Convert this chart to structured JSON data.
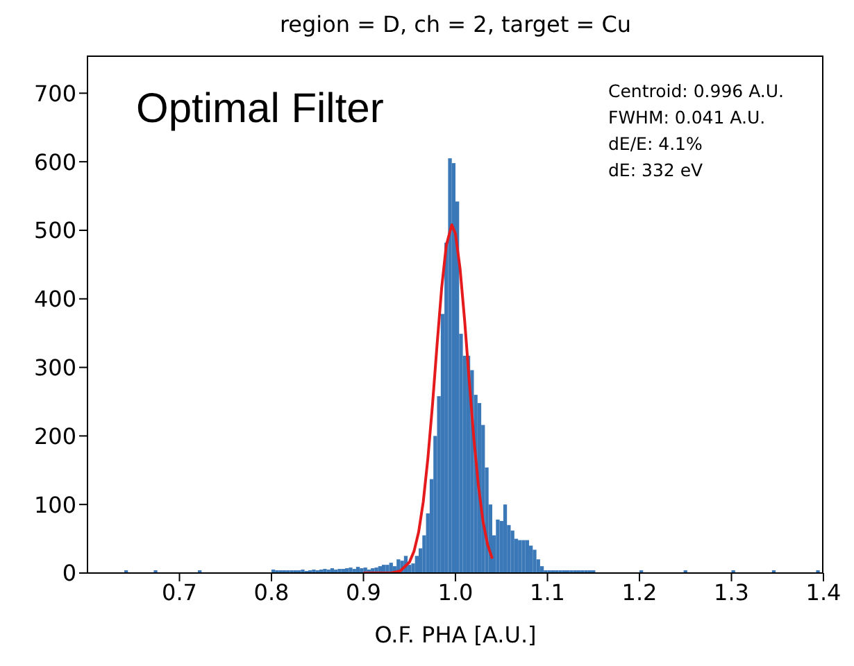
{
  "chart_data": {
    "type": "histogram",
    "title": "region = D, ch = 2, target = Cu",
    "xlabel": "O.F. PHA [A.U.]",
    "annotations": [
      "Optimal Filter",
      "Centroid: 0.996 A.U.",
      "FWHM: 0.041 A.U.",
      "dE/E: 4.1%",
      "dE: 332 eV"
    ],
    "xlim": [
      0.6,
      1.4
    ],
    "xticks": [
      0.7,
      0.8,
      0.9,
      {
        "value": 1,
        "label": "1.0"
      },
      1.1,
      1.2,
      1.3,
      1.4
    ],
    "ylim": [
      0,
      755
    ],
    "yticks": [
      0,
      100,
      200,
      300,
      400,
      500,
      600,
      700
    ],
    "series": [
      {
        "color": "#3a78b8",
        "bins": [
          0.64,
          0.644,
          0.672,
          0.676,
          0.72,
          0.724,
          0.8,
          0.804,
          0.808,
          0.812,
          0.816,
          0.82,
          0.824,
          0.828,
          0.832,
          0.836,
          0.84,
          0.844,
          0.848,
          0.852,
          0.856,
          0.86,
          0.864,
          0.868,
          0.872,
          0.876,
          0.88,
          0.884,
          0.888,
          0.892,
          0.896,
          0.9,
          0.904,
          0.908,
          0.912,
          0.916,
          0.92,
          0.924,
          0.928,
          0.932,
          0.936,
          0.94,
          0.944,
          0.948,
          0.952,
          0.956,
          0.96,
          0.964,
          0.968,
          0.972,
          0.976,
          0.98,
          0.984,
          0.988,
          0.992,
          0.996,
          1.0,
          1.004,
          1.008,
          1.012,
          1.016,
          1.02,
          1.024,
          1.028,
          1.032,
          1.036,
          1.04,
          1.044,
          1.048,
          1.052,
          1.056,
          1.06,
          1.064,
          1.068,
          1.072,
          1.076,
          1.08,
          1.084,
          1.088,
          1.092,
          1.096,
          1.1,
          1.104,
          1.108,
          1.112,
          1.116,
          1.12,
          1.124,
          1.128,
          1.132,
          1.136,
          1.14,
          1.144,
          1.148,
          1.152,
          1.2,
          1.204,
          1.248,
          1.252,
          1.3,
          1.304,
          1.344,
          1.348,
          1.392,
          1.396
        ],
        "values": [
          4,
          0,
          4,
          0,
          4,
          0,
          5,
          4,
          4,
          4,
          4,
          4,
          4,
          4,
          5,
          3,
          4,
          5,
          4,
          5,
          6,
          5,
          7,
          5,
          6,
          6,
          7,
          8,
          6,
          9,
          7,
          8,
          5,
          7,
          8,
          10,
          12,
          12,
          15,
          10,
          20,
          18,
          25,
          12,
          14,
          25,
          36,
          55,
          87,
          137,
          200,
          258,
          378,
          482,
          605,
          598,
          542,
          349,
          317,
          317,
          296,
          260,
          248,
          216,
          154,
          100,
          55,
          78,
          76,
          100,
          70,
          62,
          50,
          48,
          48,
          48,
          40,
          34,
          20,
          10,
          4,
          4,
          4,
          4,
          4,
          4,
          4,
          4,
          4,
          4,
          4,
          4,
          4,
          4,
          0,
          4,
          0,
          4,
          0,
          4,
          0,
          4,
          0,
          4
        ]
      },
      {
        "type": "line",
        "color": "#e41a1c",
        "x": [
          0.9,
          0.92,
          0.93,
          0.94,
          0.95,
          0.955,
          0.96,
          0.965,
          0.97,
          0.975,
          0.98,
          0.985,
          0.99,
          0.996,
          1.0,
          1.005,
          1.01,
          1.015,
          1.02,
          1.025,
          1.03,
          1.035,
          1.04
        ],
        "values": [
          0,
          0,
          0,
          3,
          16,
          32,
          60,
          104,
          167,
          245,
          333,
          416,
          478,
          508,
          495,
          444,
          368,
          280,
          196,
          127,
          75,
          41,
          21
        ]
      }
    ]
  }
}
